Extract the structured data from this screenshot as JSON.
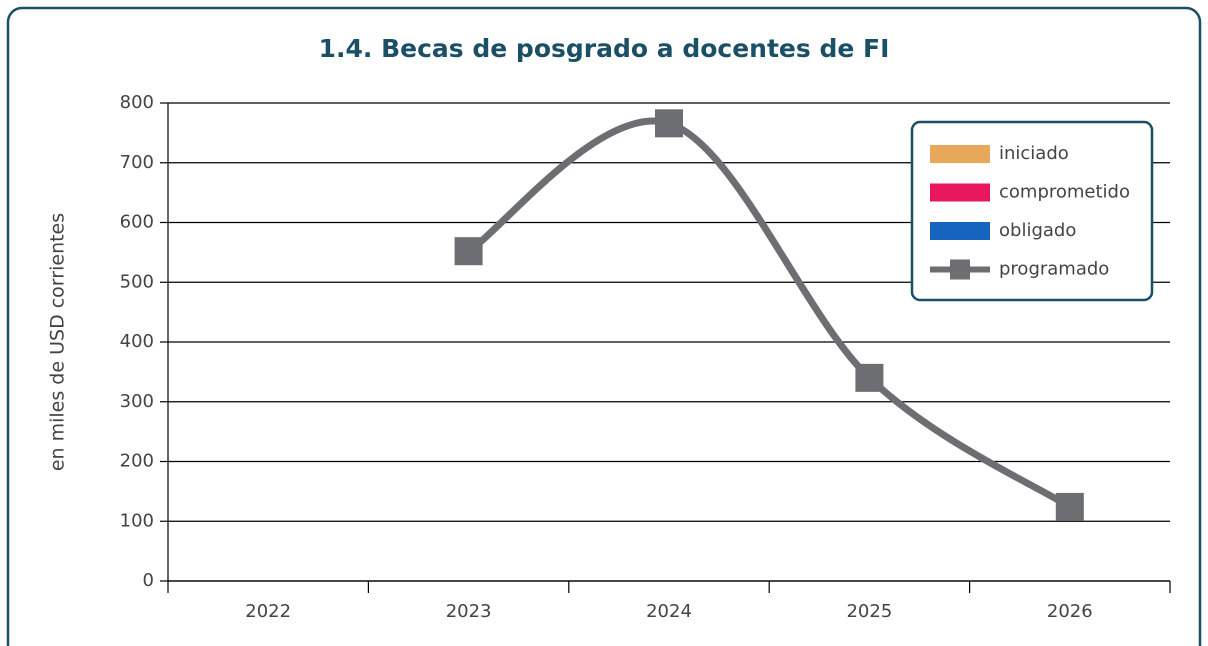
{
  "chart_data": {
    "type": "line",
    "title": "1.4. Becas de posgrado a docentes de FI",
    "y_label": "en miles de USD corrientes",
    "categories": [
      "2022",
      "2023",
      "2024",
      "2025",
      "2026"
    ],
    "series": [
      {
        "name": "iniciado",
        "color": "#e8a85a",
        "kind": "bar",
        "values": [
          null,
          null,
          null,
          null,
          null
        ]
      },
      {
        "name": "comprometido",
        "color": "#e8175d",
        "kind": "bar",
        "values": [
          null,
          null,
          null,
          null,
          null
        ]
      },
      {
        "name": "obligado",
        "color": "#1565c0",
        "kind": "bar",
        "values": [
          null,
          null,
          null,
          null,
          null
        ]
      },
      {
        "name": "programado",
        "color": "#6d6e71",
        "kind": "line",
        "values": [
          null,
          552,
          766,
          340,
          124
        ]
      }
    ],
    "ylim": [
      0,
      800
    ],
    "yticks": [
      0,
      100,
      200,
      300,
      400,
      500,
      600,
      700,
      800
    ],
    "grid": true,
    "legend": "top-right"
  }
}
